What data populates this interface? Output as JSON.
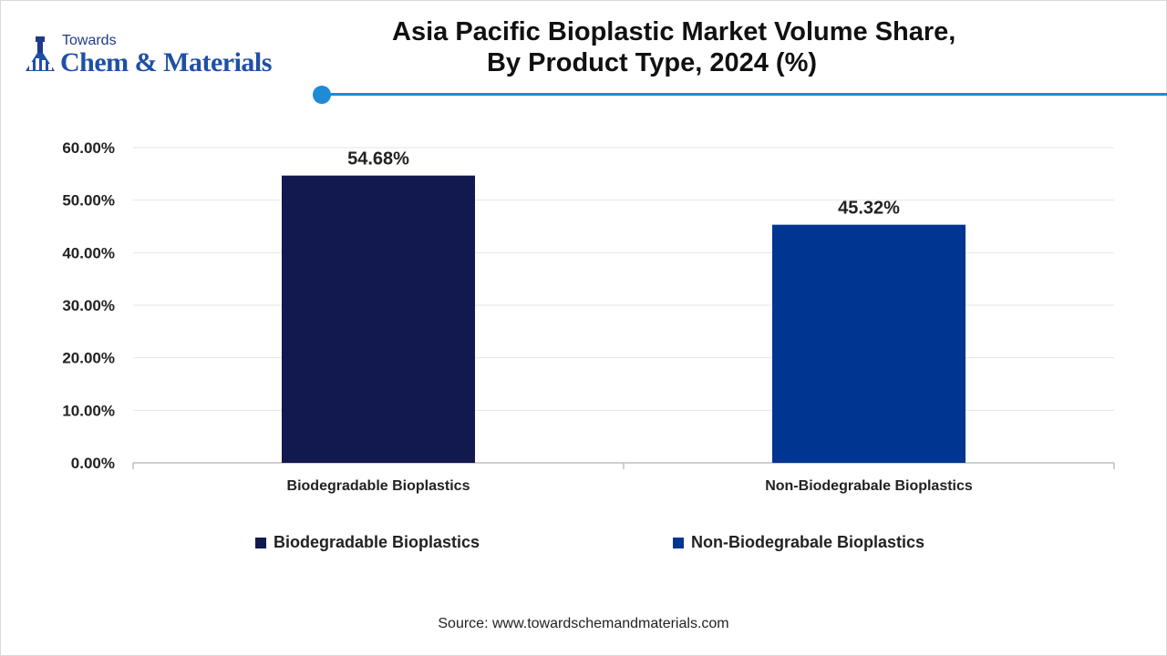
{
  "brand": {
    "top_line": "Towards",
    "main_line": "Chem & Materials"
  },
  "header": {
    "title_line1": "Asia Pacific Bioplastic Market Volume Share,",
    "title_line2": "By Product Type, 2024 (%)",
    "accent_color": "#1f8ad6"
  },
  "chart_data": {
    "type": "bar",
    "title": "Asia Pacific Bioplastic Market Volume Share, By Product Type, 2024 (%)",
    "categories": [
      "Biodegradable Bioplastics",
      "Non-Biodegrabale Bioplastics"
    ],
    "values": [
      54.68,
      45.32
    ],
    "value_labels": [
      "54.68%",
      "45.32%"
    ],
    "colors": [
      "#11194f",
      "#003591"
    ],
    "ylim": [
      0,
      60
    ],
    "yticks": [
      0,
      10,
      20,
      30,
      40,
      50,
      60
    ],
    "ytick_labels": [
      "0.00%",
      "10.00%",
      "20.00%",
      "30.00%",
      "40.00%",
      "50.00%",
      "60.00%"
    ],
    "grid": true,
    "legend_placement": "bottom"
  },
  "legend": {
    "items": [
      {
        "label": "Biodegradable Bioplastics",
        "color": "#11194f"
      },
      {
        "label": "Non-Biodegrabale Bioplastics",
        "color": "#003591"
      }
    ]
  },
  "footer": {
    "source": "Source: www.towardschemandmaterials.com"
  }
}
